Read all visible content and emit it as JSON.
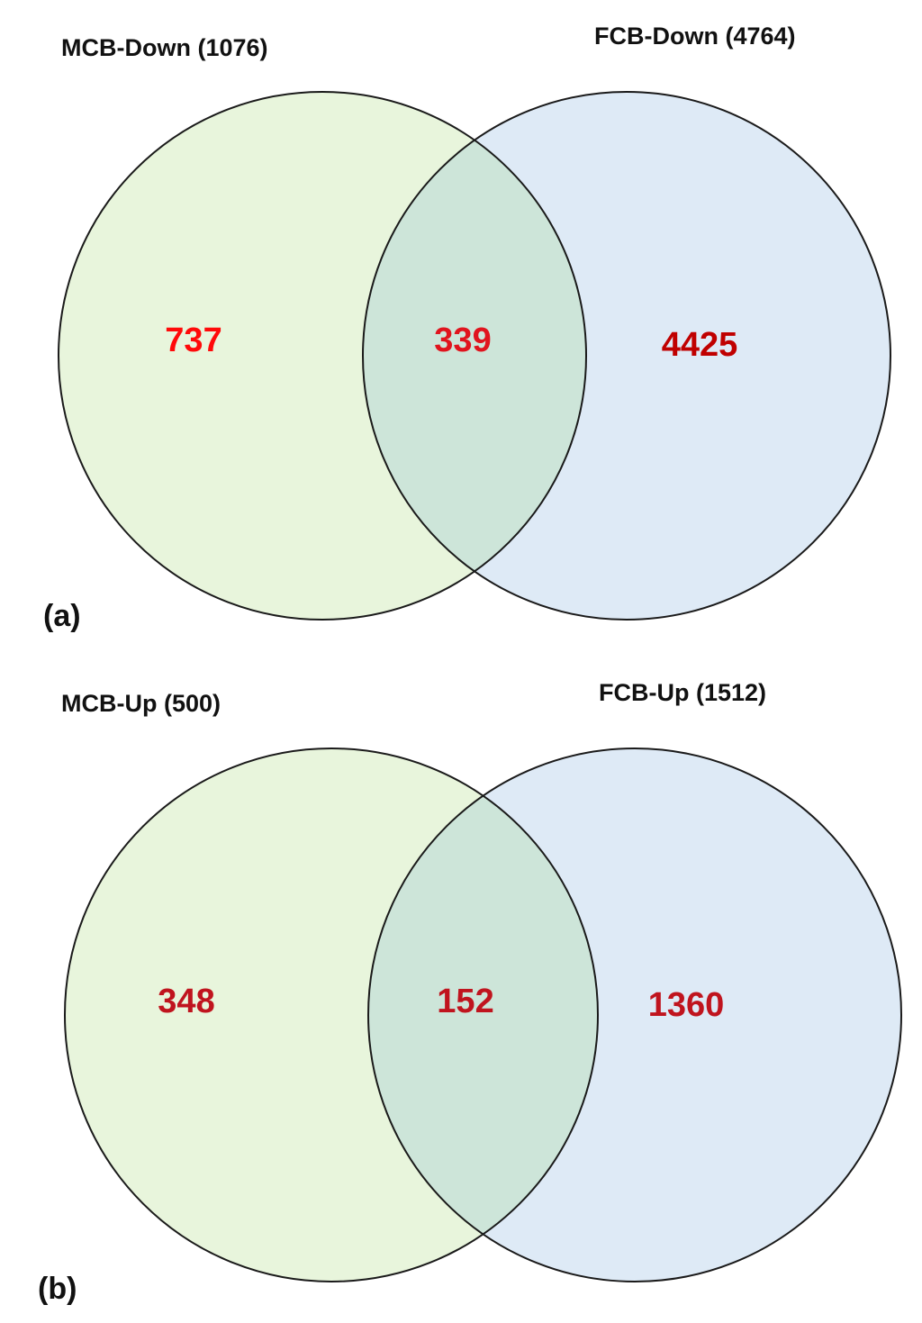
{
  "colors": {
    "left_fill": "#e8f5dc",
    "right_fill": "#deeaf6",
    "overlap_fill": "#cde5d9",
    "outline": "#1a1a1a",
    "count_left_a": "#ff0a0a",
    "count_mid_a": "#e0141e",
    "count_right_a": "#c00000",
    "count_b": "#c0141e"
  },
  "panels": [
    {
      "panel_label": "(a)",
      "left_set": "MCB-Down (1076)",
      "right_set": "FCB-Down (4764)",
      "left_only": "737",
      "overlap": "339",
      "right_only": "4425"
    },
    {
      "panel_label": "(b)",
      "left_set": "MCB-Up (500)",
      "right_set": "FCB-Up (1512)",
      "left_only": "348",
      "overlap": "152",
      "right_only": "1360"
    }
  ]
}
